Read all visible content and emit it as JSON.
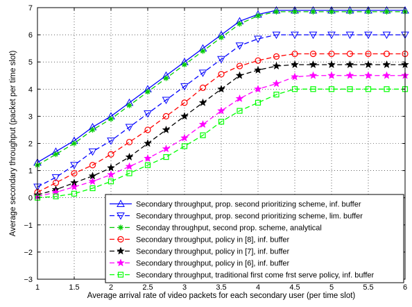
{
  "chart_data": {
    "type": "line",
    "title": "",
    "xlabel": "Average arrival rate of video packets for each secondary user (per time slot)",
    "ylabel": "Average secondary throughput (packet per time slot)",
    "xlim": [
      1,
      6
    ],
    "ylim": [
      -3,
      7
    ],
    "xticks": [
      1,
      1.5,
      2,
      2.5,
      3,
      3.5,
      4,
      4.5,
      5,
      5.5,
      6
    ],
    "xtick_labels": [
      "1",
      "1.5",
      "2",
      "2.5",
      "3",
      "3.5",
      "4",
      "4.5",
      "5",
      "5.5",
      "6"
    ],
    "yticks": [
      -3,
      -2,
      -1,
      0,
      1,
      2,
      3,
      4,
      5,
      6,
      7
    ],
    "ytick_labels": [
      "−3",
      "−2",
      "−1",
      "0",
      "1",
      "2",
      "3",
      "4",
      "5",
      "6",
      "7"
    ],
    "grid": true,
    "legend_position": "bottom-right",
    "x": [
      1,
      1.25,
      1.5,
      1.75,
      2,
      2.25,
      2.5,
      2.75,
      3,
      3.25,
      3.5,
      3.75,
      4,
      4.25,
      4.5,
      4.75,
      5,
      5.25,
      5.5,
      5.75,
      6
    ],
    "series": [
      {
        "name": "Secondary throughput, prop. second prioritizing scheme, inf. buffer",
        "color": "#0000ff",
        "line": "solid",
        "marker": "triangle-up",
        "values": [
          1.3,
          1.7,
          2.1,
          2.6,
          3.0,
          3.5,
          4.0,
          4.5,
          5.0,
          5.5,
          6.0,
          6.5,
          6.75,
          6.9,
          6.9,
          6.9,
          6.9,
          6.9,
          6.9,
          6.9,
          6.9
        ]
      },
      {
        "name": "Secondary throughput, prop. second prioritizing scheme, lim. buffer",
        "color": "#0000ff",
        "line": "dashed",
        "marker": "triangle-down",
        "values": [
          0.4,
          0.75,
          1.2,
          1.7,
          2.1,
          2.6,
          3.1,
          3.6,
          4.1,
          4.6,
          5.1,
          5.6,
          5.85,
          6.0,
          6.0,
          6.0,
          6.0,
          6.0,
          6.0,
          6.0,
          6.0
        ]
      },
      {
        "name": "Seconday throughput, second prop. scheme, analytical",
        "color": "#00cc00",
        "line": "dashed",
        "marker": "asterisk",
        "values": [
          1.2,
          1.6,
          2.0,
          2.5,
          2.9,
          3.4,
          3.9,
          4.4,
          4.9,
          5.4,
          5.9,
          6.4,
          6.7,
          6.85,
          6.85,
          6.85,
          6.85,
          6.85,
          6.85,
          6.85,
          6.85
        ]
      },
      {
        "name": "Secondary throughput, policy in [8], inf. buffer",
        "color": "#ff0000",
        "line": "dashed",
        "marker": "circle",
        "values": [
          0.2,
          0.55,
          0.9,
          1.2,
          1.6,
          2.05,
          2.5,
          3.0,
          3.5,
          4.05,
          4.55,
          4.85,
          5.05,
          5.2,
          5.3,
          5.3,
          5.3,
          5.3,
          5.3,
          5.3,
          5.3
        ]
      },
      {
        "name": "Secondary throughput, policy in [7], inf. buffer",
        "color": "#000000",
        "line": "dashed",
        "marker": "star",
        "values": [
          0.1,
          0.3,
          0.55,
          0.8,
          1.1,
          1.5,
          2.0,
          2.5,
          3.0,
          3.5,
          4.0,
          4.5,
          4.7,
          4.85,
          4.9,
          4.9,
          4.9,
          4.9,
          4.9,
          4.9,
          4.9
        ]
      },
      {
        "name": "Secondary throughput, policy in [6], inf. buffer",
        "color": "#ff00ff",
        "line": "dashed",
        "marker": "star",
        "values": [
          0.05,
          0.2,
          0.4,
          0.6,
          0.85,
          1.15,
          1.45,
          1.8,
          2.2,
          2.7,
          3.2,
          3.65,
          4.0,
          4.2,
          4.45,
          4.5,
          4.5,
          4.5,
          4.5,
          4.5,
          4.5
        ]
      },
      {
        "name": "Secondary throughput, traditional first come frst serve policy, inf. buffer",
        "color": "#00ff00",
        "line": "dashed",
        "marker": "square",
        "values": [
          0.0,
          0.05,
          0.15,
          0.35,
          0.6,
          0.9,
          1.2,
          1.5,
          1.9,
          2.3,
          2.8,
          3.2,
          3.5,
          3.8,
          4.0,
          4.0,
          4.0,
          4.0,
          4.0,
          4.0,
          4.0
        ]
      }
    ]
  }
}
